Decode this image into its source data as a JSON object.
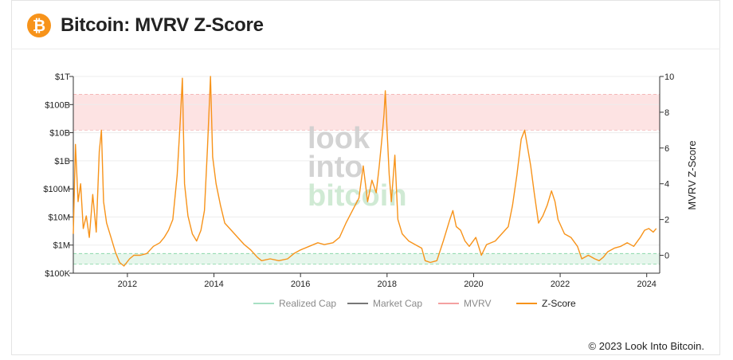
{
  "header": {
    "title": "Bitcoin: MVRV Z-Score",
    "logo_icon": "bitcoin-icon",
    "logo_glyph": "₿",
    "brand_color": "#f7931a"
  },
  "footer": {
    "copyright": "© 2023 Look Into Bitcoin."
  },
  "watermark": {
    "line1": "look",
    "line2": "into",
    "line3": "bitcoin"
  },
  "chart_data": {
    "type": "line",
    "title": "",
    "x_ticks": [
      "2012",
      "2014",
      "2016",
      "2018",
      "2020",
      "2022",
      "2024"
    ],
    "x_range": [
      2010.75,
      2024.3
    ],
    "y_left": {
      "ticks": [
        "$100K",
        "$1M",
        "$10M",
        "$100M",
        "$1B",
        "$10B",
        "$100B",
        "$1T"
      ],
      "range": [
        "$100K",
        "$1T"
      ],
      "scale": "log"
    },
    "y_right": {
      "label": "MVRV Z-Score",
      "ticks": [
        "0",
        "2",
        "4",
        "6",
        "8",
        "10"
      ],
      "range": [
        -1,
        10
      ]
    },
    "bands": [
      {
        "name": "top zone",
        "from": 7,
        "to": 9,
        "color": "#fde3e3"
      },
      {
        "name": "bottom zone",
        "from": -0.5,
        "to": 0.1,
        "color": "#e6f6ec"
      }
    ],
    "legend": [
      "Realized Cap",
      "Market Cap",
      "MVRV",
      "Z-Score"
    ],
    "legend_colors": [
      "#a8e0c4",
      "#777777",
      "#f4a0a0",
      "#f7931a"
    ],
    "grid": true,
    "series": [
      {
        "name": "Z-Score",
        "color": "#f7931a",
        "points": [
          [
            2010.75,
            1.2
          ],
          [
            2010.8,
            6.2
          ],
          [
            2010.86,
            3.0
          ],
          [
            2010.92,
            4.0
          ],
          [
            2010.98,
            1.5
          ],
          [
            2011.05,
            2.2
          ],
          [
            2011.12,
            1.0
          ],
          [
            2011.2,
            3.4
          ],
          [
            2011.28,
            1.3
          ],
          [
            2011.35,
            5.8
          ],
          [
            2011.4,
            7.0
          ],
          [
            2011.45,
            3.0
          ],
          [
            2011.52,
            1.8
          ],
          [
            2011.62,
            1.0
          ],
          [
            2011.72,
            0.2
          ],
          [
            2011.82,
            -0.4
          ],
          [
            2011.92,
            -0.6
          ],
          [
            2012.05,
            -0.2
          ],
          [
            2012.15,
            0.0
          ],
          [
            2012.3,
            0.0
          ],
          [
            2012.45,
            0.1
          ],
          [
            2012.6,
            0.5
          ],
          [
            2012.75,
            0.7
          ],
          [
            2012.85,
            1.0
          ],
          [
            2012.95,
            1.4
          ],
          [
            2013.05,
            2.0
          ],
          [
            2013.15,
            4.5
          ],
          [
            2013.22,
            7.5
          ],
          [
            2013.27,
            9.9
          ],
          [
            2013.32,
            4.0
          ],
          [
            2013.4,
            2.2
          ],
          [
            2013.5,
            1.2
          ],
          [
            2013.6,
            0.8
          ],
          [
            2013.7,
            1.4
          ],
          [
            2013.78,
            2.5
          ],
          [
            2013.85,
            6.0
          ],
          [
            2013.92,
            10.0
          ],
          [
            2013.97,
            5.5
          ],
          [
            2014.05,
            4.0
          ],
          [
            2014.15,
            2.8
          ],
          [
            2014.25,
            1.8
          ],
          [
            2014.4,
            1.4
          ],
          [
            2014.55,
            1.0
          ],
          [
            2014.7,
            0.6
          ],
          [
            2014.85,
            0.3
          ],
          [
            2015.0,
            -0.1
          ],
          [
            2015.1,
            -0.3
          ],
          [
            2015.3,
            -0.2
          ],
          [
            2015.5,
            -0.3
          ],
          [
            2015.7,
            -0.2
          ],
          [
            2015.85,
            0.1
          ],
          [
            2016.0,
            0.3
          ],
          [
            2016.2,
            0.5
          ],
          [
            2016.4,
            0.7
          ],
          [
            2016.55,
            0.6
          ],
          [
            2016.75,
            0.7
          ],
          [
            2016.9,
            1.0
          ],
          [
            2017.05,
            1.8
          ],
          [
            2017.2,
            2.5
          ],
          [
            2017.35,
            3.2
          ],
          [
            2017.45,
            5.0
          ],
          [
            2017.55,
            3.0
          ],
          [
            2017.65,
            4.2
          ],
          [
            2017.75,
            3.5
          ],
          [
            2017.82,
            5.0
          ],
          [
            2017.88,
            6.5
          ],
          [
            2017.93,
            7.9
          ],
          [
            2017.96,
            9.2
          ],
          [
            2018.0,
            7.0
          ],
          [
            2018.05,
            4.5
          ],
          [
            2018.1,
            3.0
          ],
          [
            2018.18,
            5.6
          ],
          [
            2018.25,
            2.0
          ],
          [
            2018.35,
            1.2
          ],
          [
            2018.5,
            0.8
          ],
          [
            2018.65,
            0.6
          ],
          [
            2018.8,
            0.4
          ],
          [
            2018.88,
            -0.3
          ],
          [
            2019.0,
            -0.4
          ],
          [
            2019.15,
            -0.3
          ],
          [
            2019.3,
            0.8
          ],
          [
            2019.45,
            2.0
          ],
          [
            2019.52,
            2.5
          ],
          [
            2019.6,
            1.6
          ],
          [
            2019.7,
            1.4
          ],
          [
            2019.8,
            0.8
          ],
          [
            2019.9,
            0.5
          ],
          [
            2020.05,
            1.0
          ],
          [
            2020.18,
            0.0
          ],
          [
            2020.3,
            0.6
          ],
          [
            2020.5,
            0.8
          ],
          [
            2020.65,
            1.2
          ],
          [
            2020.8,
            1.6
          ],
          [
            2020.9,
            2.8
          ],
          [
            2021.0,
            4.5
          ],
          [
            2021.1,
            6.5
          ],
          [
            2021.18,
            7.0
          ],
          [
            2021.25,
            6.0
          ],
          [
            2021.32,
            5.0
          ],
          [
            2021.4,
            3.5
          ],
          [
            2021.5,
            1.8
          ],
          [
            2021.6,
            2.2
          ],
          [
            2021.7,
            2.8
          ],
          [
            2021.8,
            3.6
          ],
          [
            2021.88,
            3.0
          ],
          [
            2021.95,
            2.0
          ],
          [
            2022.1,
            1.2
          ],
          [
            2022.25,
            1.0
          ],
          [
            2022.4,
            0.5
          ],
          [
            2022.5,
            -0.2
          ],
          [
            2022.65,
            0.0
          ],
          [
            2022.8,
            -0.2
          ],
          [
            2022.9,
            -0.3
          ],
          [
            2023.0,
            -0.1
          ],
          [
            2023.1,
            0.2
          ],
          [
            2023.25,
            0.4
          ],
          [
            2023.4,
            0.5
          ],
          [
            2023.55,
            0.7
          ],
          [
            2023.7,
            0.5
          ],
          [
            2023.85,
            1.0
          ],
          [
            2023.95,
            1.4
          ],
          [
            2024.05,
            1.5
          ],
          [
            2024.15,
            1.3
          ],
          [
            2024.22,
            1.5
          ]
        ]
      }
    ]
  }
}
